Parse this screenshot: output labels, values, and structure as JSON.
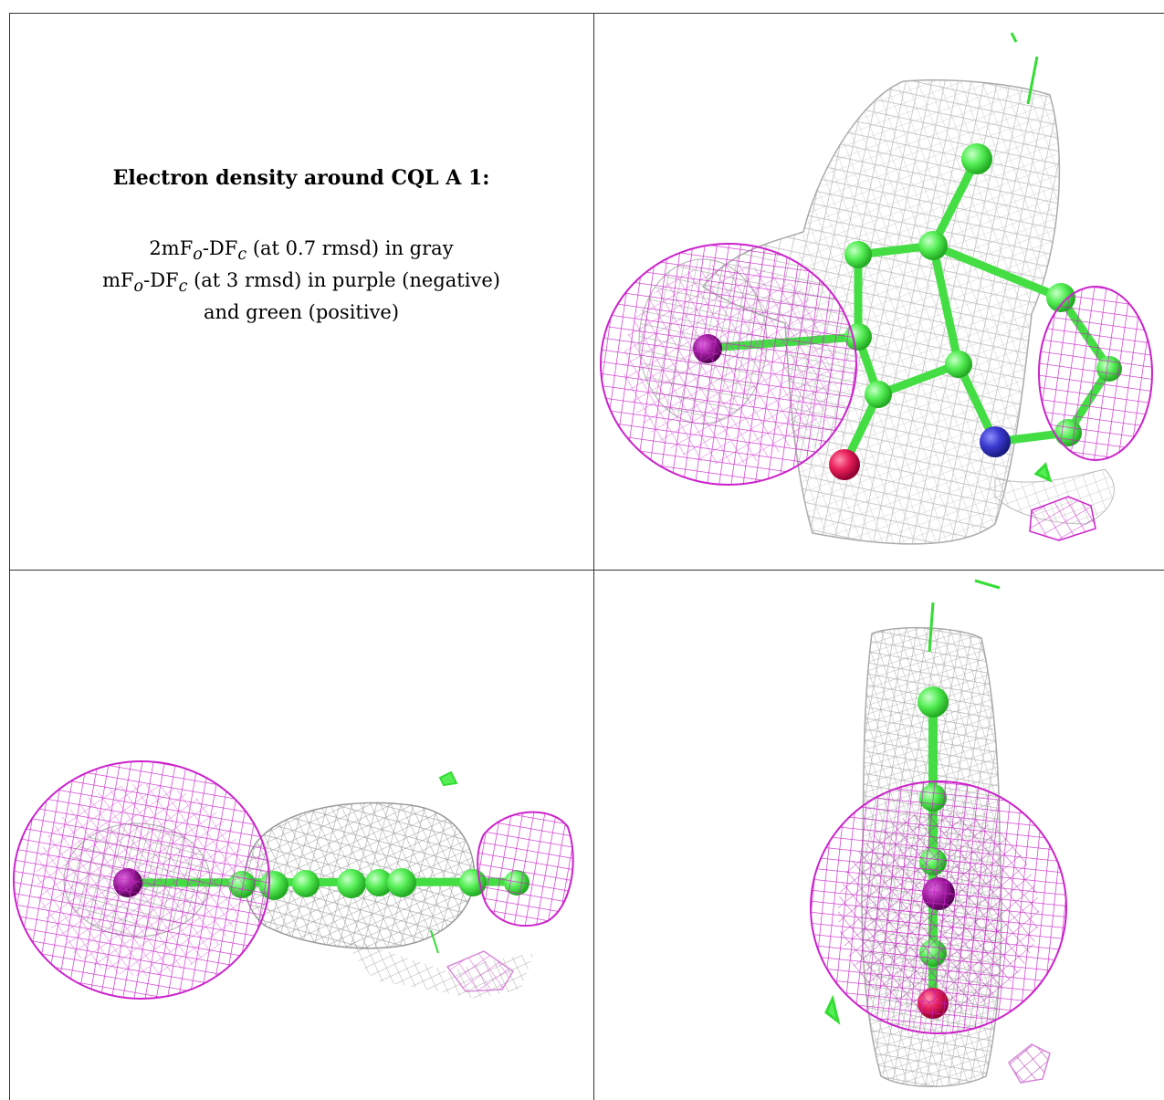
{
  "caption": {
    "title": "Electron density around CQL A 1:",
    "line1_prefix": "2mF",
    "line1_sub1": "o",
    "line1_mid": "-DF",
    "line1_sub2": "c",
    "line1_suffix": " (at 0.7 rmsd) in gray",
    "line2_prefix": "mF",
    "line2_sub1": "o",
    "line2_mid": "-DF",
    "line2_sub2": "c",
    "line2_suffix": " (at 3 rmsd) in purple (negative)",
    "line3": "and green (positive)"
  },
  "colors": {
    "mesh_2fofc": "#b4b4b4",
    "mesh_negative": "#cc22cc",
    "mesh_positive": "#33dd33",
    "carbon": "#55ee55",
    "nitrogen": "#3a3ad0",
    "oxygen": "#e8205a",
    "iodine": "#a020a0",
    "grid_line": "#333333"
  },
  "views": [
    "front-view",
    "side-view",
    "end-view"
  ]
}
